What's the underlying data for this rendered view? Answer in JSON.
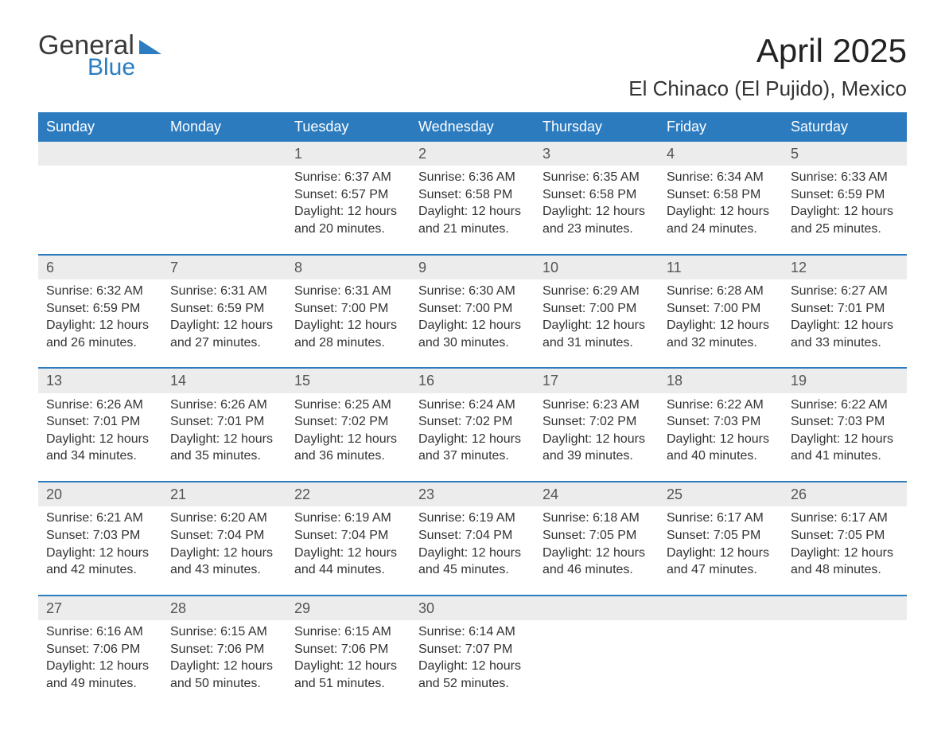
{
  "brand": {
    "word1": "General",
    "word2": "Blue"
  },
  "colors": {
    "brand_blue": "#2c7bbf",
    "daynum_bg": "#ececec",
    "text": "#333333",
    "bg": "#ffffff"
  },
  "header": {
    "month_title": "April 2025",
    "location": "El Chinaco (El Pujido), Mexico"
  },
  "weekdays": [
    "Sunday",
    "Monday",
    "Tuesday",
    "Wednesday",
    "Thursday",
    "Friday",
    "Saturday"
  ],
  "layout": {
    "blank_leading": 2,
    "blank_trailing": 3,
    "weeks": 5,
    "days_per_week": 7
  },
  "days": [
    {
      "n": 1,
      "sunrise": "Sunrise: 6:37 AM",
      "sunset": "Sunset: 6:57 PM",
      "daylight1": "Daylight: 12 hours",
      "daylight2": "and 20 minutes."
    },
    {
      "n": 2,
      "sunrise": "Sunrise: 6:36 AM",
      "sunset": "Sunset: 6:58 PM",
      "daylight1": "Daylight: 12 hours",
      "daylight2": "and 21 minutes."
    },
    {
      "n": 3,
      "sunrise": "Sunrise: 6:35 AM",
      "sunset": "Sunset: 6:58 PM",
      "daylight1": "Daylight: 12 hours",
      "daylight2": "and 23 minutes."
    },
    {
      "n": 4,
      "sunrise": "Sunrise: 6:34 AM",
      "sunset": "Sunset: 6:58 PM",
      "daylight1": "Daylight: 12 hours",
      "daylight2": "and 24 minutes."
    },
    {
      "n": 5,
      "sunrise": "Sunrise: 6:33 AM",
      "sunset": "Sunset: 6:59 PM",
      "daylight1": "Daylight: 12 hours",
      "daylight2": "and 25 minutes."
    },
    {
      "n": 6,
      "sunrise": "Sunrise: 6:32 AM",
      "sunset": "Sunset: 6:59 PM",
      "daylight1": "Daylight: 12 hours",
      "daylight2": "and 26 minutes."
    },
    {
      "n": 7,
      "sunrise": "Sunrise: 6:31 AM",
      "sunset": "Sunset: 6:59 PM",
      "daylight1": "Daylight: 12 hours",
      "daylight2": "and 27 minutes."
    },
    {
      "n": 8,
      "sunrise": "Sunrise: 6:31 AM",
      "sunset": "Sunset: 7:00 PM",
      "daylight1": "Daylight: 12 hours",
      "daylight2": "and 28 minutes."
    },
    {
      "n": 9,
      "sunrise": "Sunrise: 6:30 AM",
      "sunset": "Sunset: 7:00 PM",
      "daylight1": "Daylight: 12 hours",
      "daylight2": "and 30 minutes."
    },
    {
      "n": 10,
      "sunrise": "Sunrise: 6:29 AM",
      "sunset": "Sunset: 7:00 PM",
      "daylight1": "Daylight: 12 hours",
      "daylight2": "and 31 minutes."
    },
    {
      "n": 11,
      "sunrise": "Sunrise: 6:28 AM",
      "sunset": "Sunset: 7:00 PM",
      "daylight1": "Daylight: 12 hours",
      "daylight2": "and 32 minutes."
    },
    {
      "n": 12,
      "sunrise": "Sunrise: 6:27 AM",
      "sunset": "Sunset: 7:01 PM",
      "daylight1": "Daylight: 12 hours",
      "daylight2": "and 33 minutes."
    },
    {
      "n": 13,
      "sunrise": "Sunrise: 6:26 AM",
      "sunset": "Sunset: 7:01 PM",
      "daylight1": "Daylight: 12 hours",
      "daylight2": "and 34 minutes."
    },
    {
      "n": 14,
      "sunrise": "Sunrise: 6:26 AM",
      "sunset": "Sunset: 7:01 PM",
      "daylight1": "Daylight: 12 hours",
      "daylight2": "and 35 minutes."
    },
    {
      "n": 15,
      "sunrise": "Sunrise: 6:25 AM",
      "sunset": "Sunset: 7:02 PM",
      "daylight1": "Daylight: 12 hours",
      "daylight2": "and 36 minutes."
    },
    {
      "n": 16,
      "sunrise": "Sunrise: 6:24 AM",
      "sunset": "Sunset: 7:02 PM",
      "daylight1": "Daylight: 12 hours",
      "daylight2": "and 37 minutes."
    },
    {
      "n": 17,
      "sunrise": "Sunrise: 6:23 AM",
      "sunset": "Sunset: 7:02 PM",
      "daylight1": "Daylight: 12 hours",
      "daylight2": "and 39 minutes."
    },
    {
      "n": 18,
      "sunrise": "Sunrise: 6:22 AM",
      "sunset": "Sunset: 7:03 PM",
      "daylight1": "Daylight: 12 hours",
      "daylight2": "and 40 minutes."
    },
    {
      "n": 19,
      "sunrise": "Sunrise: 6:22 AM",
      "sunset": "Sunset: 7:03 PM",
      "daylight1": "Daylight: 12 hours",
      "daylight2": "and 41 minutes."
    },
    {
      "n": 20,
      "sunrise": "Sunrise: 6:21 AM",
      "sunset": "Sunset: 7:03 PM",
      "daylight1": "Daylight: 12 hours",
      "daylight2": "and 42 minutes."
    },
    {
      "n": 21,
      "sunrise": "Sunrise: 6:20 AM",
      "sunset": "Sunset: 7:04 PM",
      "daylight1": "Daylight: 12 hours",
      "daylight2": "and 43 minutes."
    },
    {
      "n": 22,
      "sunrise": "Sunrise: 6:19 AM",
      "sunset": "Sunset: 7:04 PM",
      "daylight1": "Daylight: 12 hours",
      "daylight2": "and 44 minutes."
    },
    {
      "n": 23,
      "sunrise": "Sunrise: 6:19 AM",
      "sunset": "Sunset: 7:04 PM",
      "daylight1": "Daylight: 12 hours",
      "daylight2": "and 45 minutes."
    },
    {
      "n": 24,
      "sunrise": "Sunrise: 6:18 AM",
      "sunset": "Sunset: 7:05 PM",
      "daylight1": "Daylight: 12 hours",
      "daylight2": "and 46 minutes."
    },
    {
      "n": 25,
      "sunrise": "Sunrise: 6:17 AM",
      "sunset": "Sunset: 7:05 PM",
      "daylight1": "Daylight: 12 hours",
      "daylight2": "and 47 minutes."
    },
    {
      "n": 26,
      "sunrise": "Sunrise: 6:17 AM",
      "sunset": "Sunset: 7:05 PM",
      "daylight1": "Daylight: 12 hours",
      "daylight2": "and 48 minutes."
    },
    {
      "n": 27,
      "sunrise": "Sunrise: 6:16 AM",
      "sunset": "Sunset: 7:06 PM",
      "daylight1": "Daylight: 12 hours",
      "daylight2": "and 49 minutes."
    },
    {
      "n": 28,
      "sunrise": "Sunrise: 6:15 AM",
      "sunset": "Sunset: 7:06 PM",
      "daylight1": "Daylight: 12 hours",
      "daylight2": "and 50 minutes."
    },
    {
      "n": 29,
      "sunrise": "Sunrise: 6:15 AM",
      "sunset": "Sunset: 7:06 PM",
      "daylight1": "Daylight: 12 hours",
      "daylight2": "and 51 minutes."
    },
    {
      "n": 30,
      "sunrise": "Sunrise: 6:14 AM",
      "sunset": "Sunset: 7:07 PM",
      "daylight1": "Daylight: 12 hours",
      "daylight2": "and 52 minutes."
    }
  ]
}
